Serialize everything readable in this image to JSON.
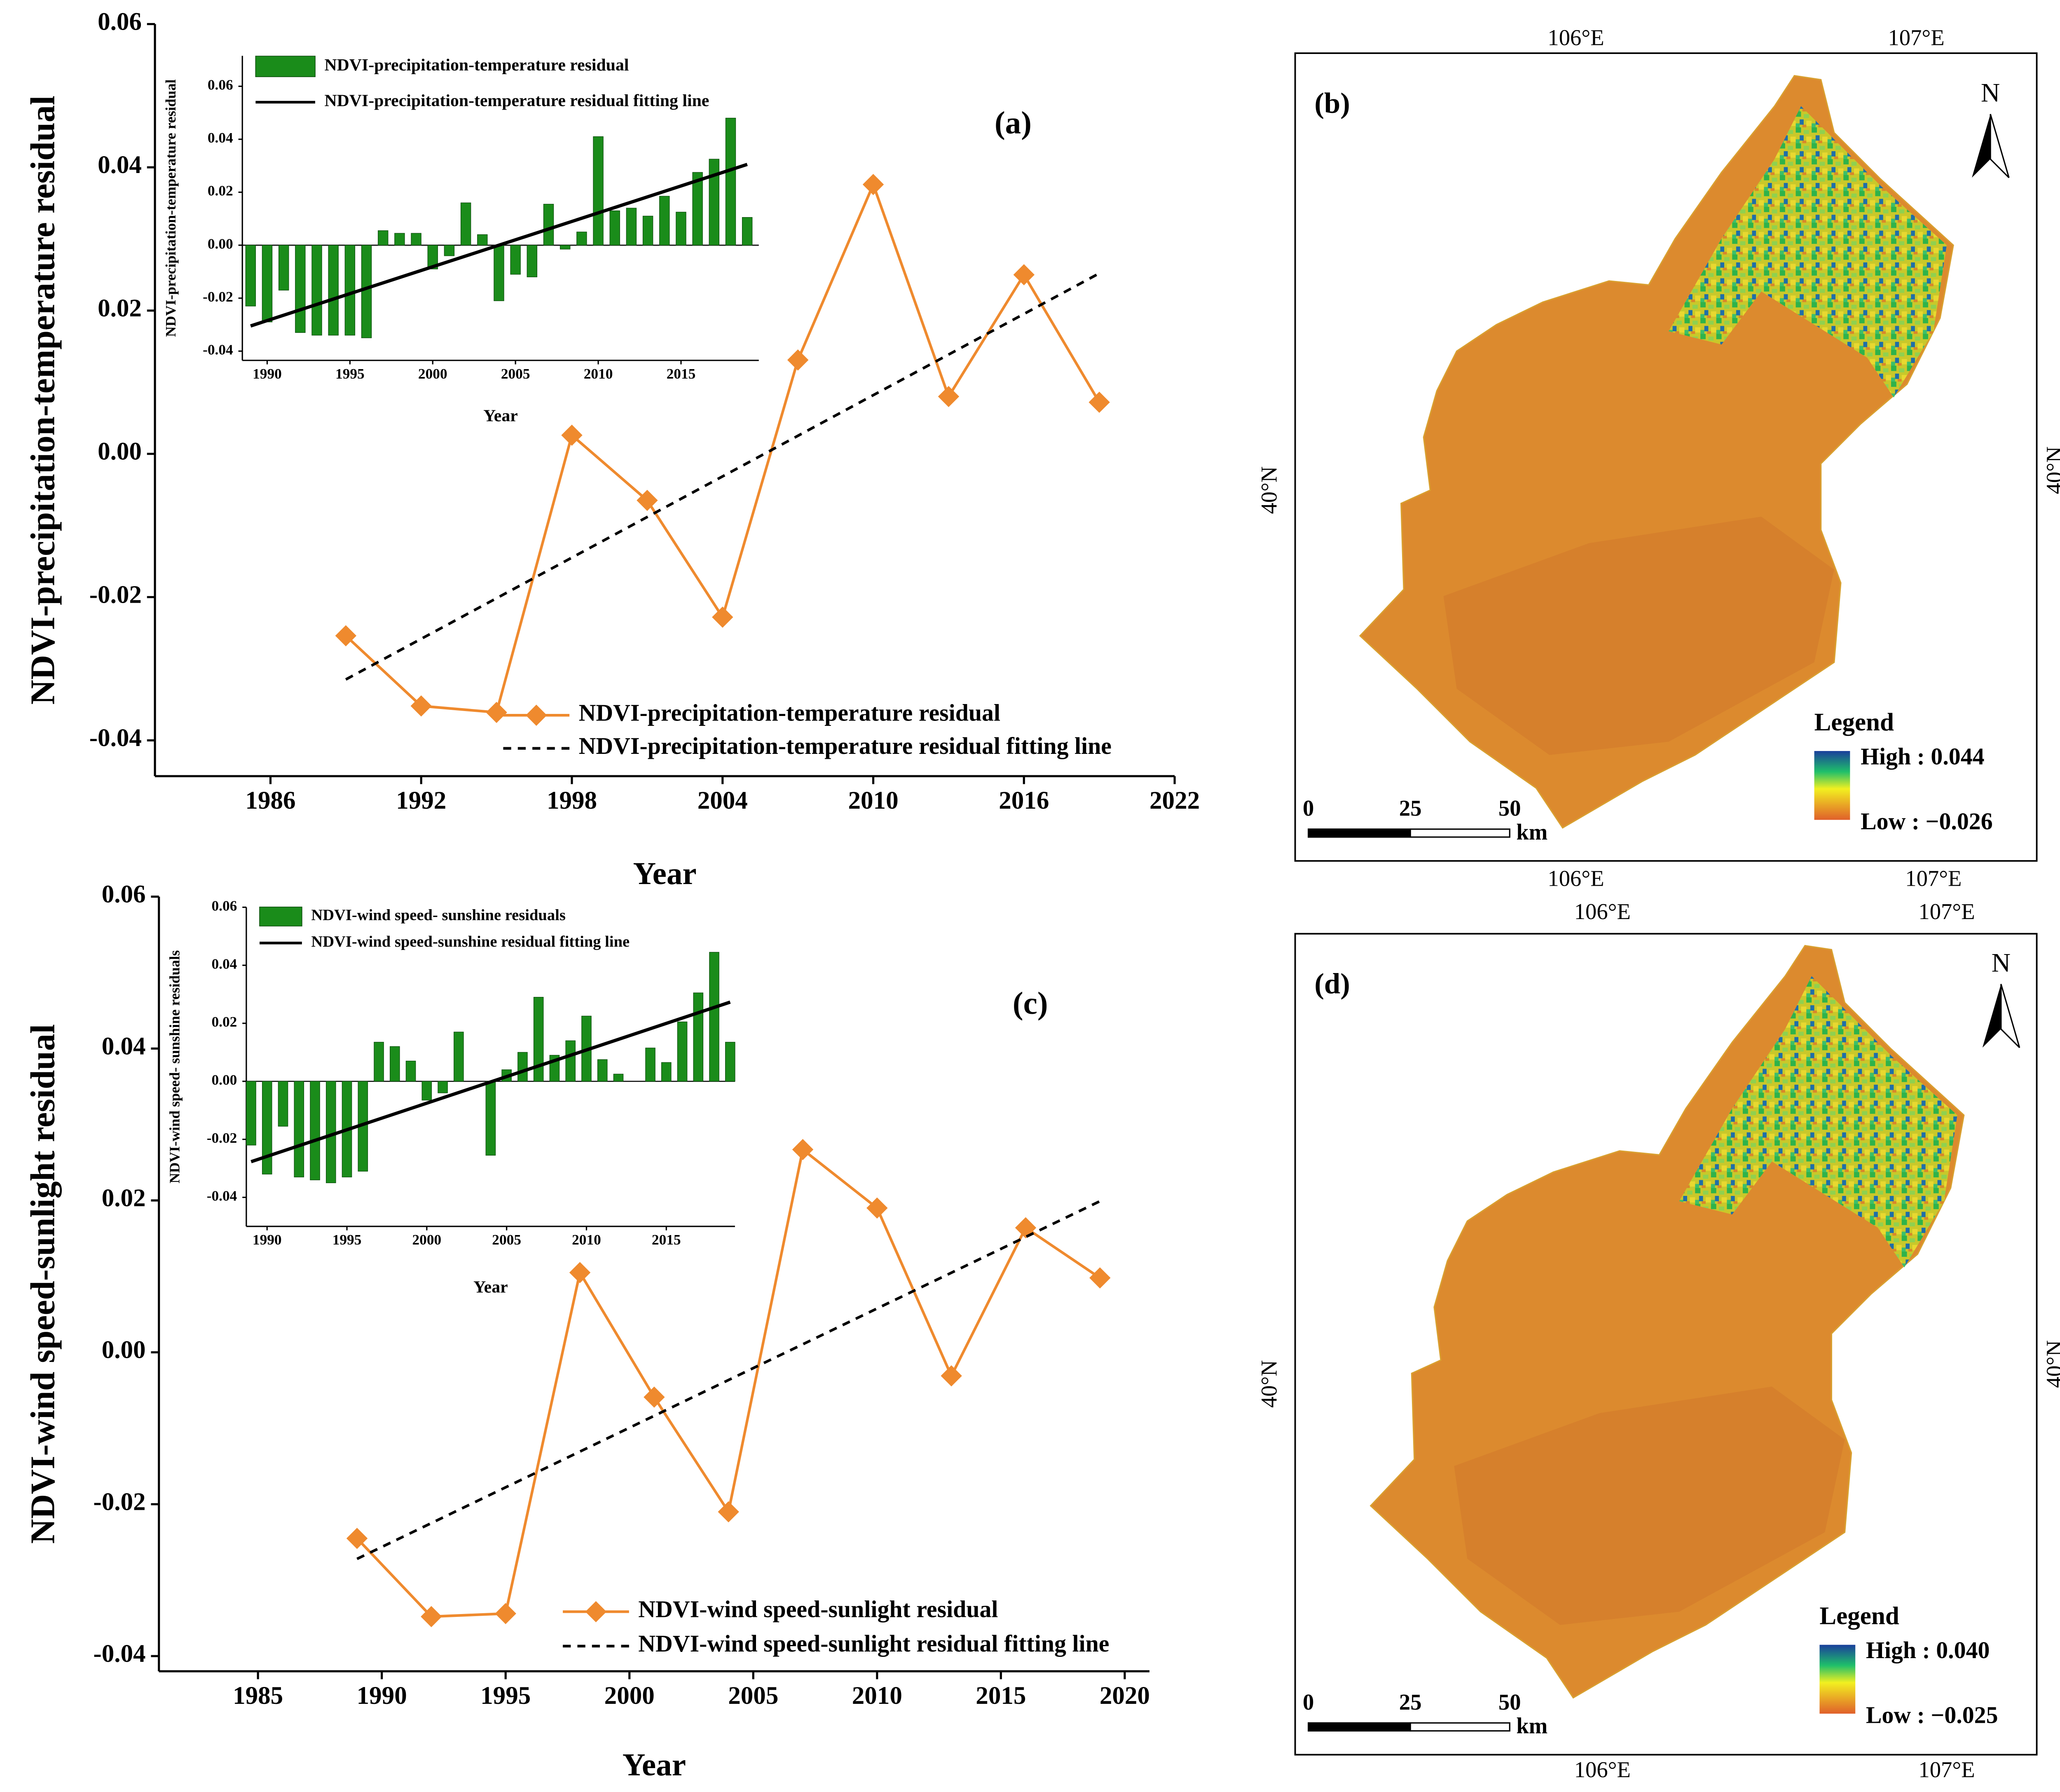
{
  "chart_data": [
    {
      "type": "line",
      "annotation": "(a)",
      "xlabel": "Year",
      "ylabel": "NDVI-precipitation-temperature residual",
      "x": [
        1989,
        1992,
        1995,
        1998,
        2001,
        2004,
        2007,
        2010,
        2013,
        2016,
        2019
      ],
      "series": [
        {
          "name": "NDVI-precipitation-temperature residual",
          "color": "#ef8a2e",
          "marker": "diamond",
          "linestyle": "solid",
          "values": [
            -0.0254,
            -0.0352,
            -0.0361,
            0.0026,
            -0.0065,
            -0.0228,
            0.0131,
            0.0376,
            0.008,
            0.025,
            0.0072
          ]
        },
        {
          "name": "NDVI-precipitation-temperature residual fitting line",
          "color": "#000000",
          "linestyle": "dashed",
          "x": [
            1989,
            2019
          ],
          "values": [
            -0.0315,
            0.0252
          ]
        }
      ],
      "xlim": [
        1981.4,
        2022
      ],
      "xticks": [
        1986,
        1992,
        1998,
        2004,
        2010,
        2016,
        2022
      ],
      "ylim": [
        -0.045,
        0.06
      ],
      "yticks": [
        -0.04,
        -0.02,
        {
          "value": 0,
          "label": "0.00"
        },
        0.02,
        0.04,
        0.06
      ],
      "legend": "lower right"
    },
    {
      "type": "bar",
      "xlabel": "Year",
      "ylabel": "NDVI-precipitation-temperature residual",
      "x": [
        1989,
        1990,
        1991,
        1992,
        1993,
        1994,
        1995,
        1996,
        1997,
        1998,
        1999,
        2000,
        2001,
        2002,
        2003,
        2004,
        2005,
        2006,
        2007,
        2008,
        2009,
        2010,
        2011,
        2012,
        2013,
        2014,
        2015,
        2016,
        2017,
        2018,
        2019
      ],
      "series": [
        {
          "name": "NDVI-precipitation-temperature residual",
          "color": "#1a8c1a",
          "values": [
            -0.023,
            -0.029,
            -0.017,
            -0.033,
            -0.034,
            -0.034,
            -0.034,
            -0.035,
            0.0055,
            0.0045,
            0.0045,
            -0.009,
            -0.004,
            0.016,
            0.004,
            -0.021,
            -0.011,
            -0.012,
            0.0155,
            -0.0015,
            0.005,
            0.041,
            0.013,
            0.014,
            0.011,
            0.0185,
            0.0125,
            0.0275,
            0.0325,
            0.048,
            0.0105
          ]
        },
        {
          "name": "NDVI-precipitation-temperature residual fitting line",
          "color": "#000000",
          "type": "line",
          "linestyle": "solid",
          "x": [
            1989,
            2019
          ],
          "values": [
            -0.0305,
            0.0305
          ]
        }
      ],
      "xlim": [
        1988.5,
        2019.7
      ],
      "xticks": [
        1990,
        1995,
        2000,
        2005,
        2010,
        2015
      ],
      "ylim": [
        -0.0435,
        0.0715
      ],
      "yticks": [
        -0.04,
        -0.02,
        {
          "value": 0,
          "label": "0.00"
        },
        0.02,
        0.04,
        0.06
      ],
      "legend": "upper left"
    },
    {
      "type": "line",
      "annotation": "(c)",
      "xlabel": "Year",
      "ylabel": "NDVI-wind speed-sunlight residual",
      "x": [
        1989,
        1992,
        1995,
        1998,
        2001,
        2004,
        2007,
        2010,
        2013,
        2016,
        2019
      ],
      "series": [
        {
          "name": "NDVI-wind speed-sunlight residual",
          "color": "#ef8a2e",
          "marker": "diamond",
          "linestyle": "solid",
          "values": [
            -0.0245,
            -0.0348,
            -0.0344,
            0.0105,
            -0.0059,
            -0.021,
            0.0267,
            0.019,
            -0.0031,
            0.0164,
            0.0098
          ]
        },
        {
          "name": "NDVI-wind speed-sunlight residual fitting line",
          "color": "#000000",
          "linestyle": "dashed",
          "x": [
            1989,
            2019
          ],
          "values": [
            -0.0272,
            0.0199
          ]
        }
      ],
      "xlim": [
        1981,
        2021
      ],
      "xticks": [
        1985,
        1990,
        1995,
        2000,
        2005,
        2010,
        2015,
        2020
      ],
      "ylim": [
        -0.042,
        0.06
      ],
      "yticks": [
        -0.04,
        -0.02,
        {
          "value": 0,
          "label": "0.00"
        },
        0.02,
        0.04,
        0.06
      ],
      "legend": "lower right"
    },
    {
      "type": "bar",
      "xlabel": "Year",
      "ylabel": "NDVI-wind speed- sunshine residuals",
      "x": [
        1989,
        1990,
        1991,
        1992,
        1993,
        1994,
        1995,
        1996,
        1997,
        1998,
        1999,
        2000,
        2001,
        2002,
        2003,
        2004,
        2005,
        2006,
        2007,
        2008,
        2009,
        2010,
        2011,
        2012,
        2013,
        2014,
        2015,
        2016,
        2017,
        2018,
        2019
      ],
      "series": [
        {
          "name": "NDVI-wind speed- sunshine residuals",
          "color": "#1a8c1a",
          "values": [
            -0.022,
            -0.032,
            -0.0155,
            -0.033,
            -0.034,
            -0.035,
            -0.033,
            -0.031,
            0.0135,
            0.012,
            0.007,
            -0.0065,
            -0.004,
            0.017,
            0,
            -0.0255,
            0.004,
            0.01,
            0.029,
            0.009,
            0.014,
            0.0225,
            0.0075,
            0.0025,
            0,
            0.0115,
            0.0065,
            0.0205,
            0.0305,
            0.0445,
            0.0135
          ]
        },
        {
          "name": "NDVI-wind speed-sunshine residual fitting line",
          "color": "#000000",
          "type": "line",
          "linestyle": "solid",
          "x": [
            1989,
            2019
          ],
          "values": [
            -0.0277,
            0.0273
          ]
        }
      ],
      "xlim": [
        1988.7,
        2019.3
      ],
      "xticks": [
        1990,
        1995,
        2000,
        2005,
        2010,
        2015
      ],
      "ylim": [
        -0.05,
        0.06
      ],
      "yticks": [
        -0.04,
        -0.02,
        {
          "value": 0,
          "label": "0.00"
        },
        0.02,
        0.04,
        0.06
      ],
      "legend": "upper left"
    }
  ],
  "maps": [
    {
      "label": "(b)",
      "lon_ticks": [
        "106°E",
        "107°E"
      ],
      "lat_ticks": [
        "40°N"
      ],
      "north": "N",
      "scale_labels": [
        "0",
        "25",
        "50"
      ],
      "scale_unit": "km",
      "legend_title": "Legend",
      "legend_high": "High : 0.044",
      "legend_low": "Low : −0.026"
    },
    {
      "label": "(d)",
      "lon_ticks": [
        "106°E",
        "107°E"
      ],
      "lat_ticks": [
        "40°N"
      ],
      "north": "N",
      "scale_labels": [
        "0",
        "25",
        "50"
      ],
      "scale_unit": "km",
      "legend_title": "Legend",
      "legend_high": "High : 0.040",
      "legend_low": "Low : −0.025"
    }
  ]
}
